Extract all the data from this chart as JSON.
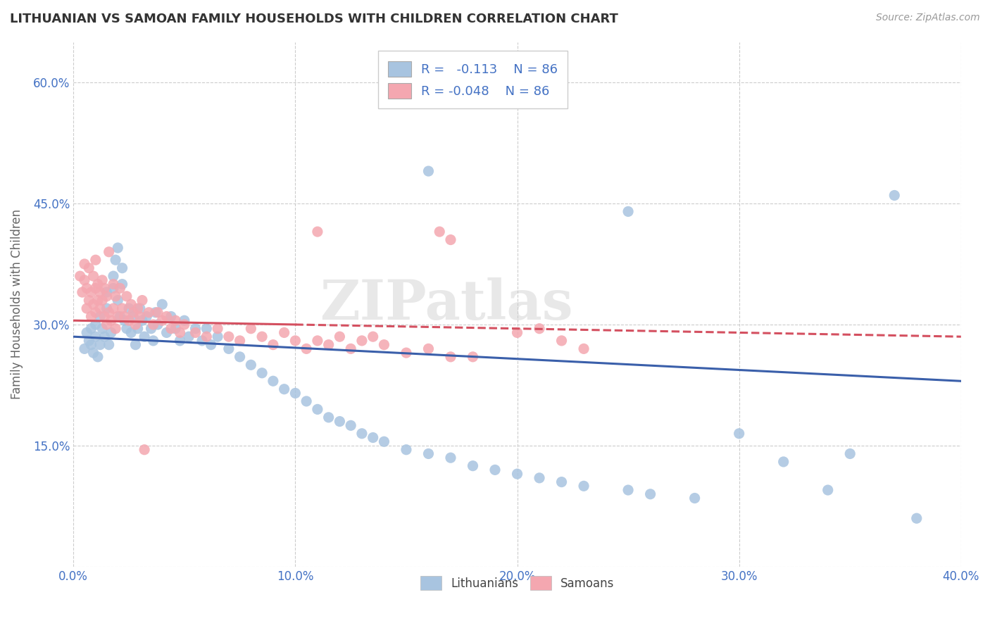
{
  "title": "LITHUANIAN VS SAMOAN FAMILY HOUSEHOLDS WITH CHILDREN CORRELATION CHART",
  "source": "Source: ZipAtlas.com",
  "ylabel": "Family Households with Children",
  "xlim": [
    0.0,
    0.4
  ],
  "ylim": [
    0.0,
    0.65
  ],
  "xticks": [
    0.0,
    0.1,
    0.2,
    0.3,
    0.4
  ],
  "xtick_labels": [
    "0.0%",
    "10.0%",
    "20.0%",
    "30.0%",
    "40.0%"
  ],
  "yticks": [
    0.0,
    0.15,
    0.3,
    0.45,
    0.6
  ],
  "ytick_labels": [
    "",
    "15.0%",
    "30.0%",
    "45.0%",
    "60.0%"
  ],
  "grid_color": "#cccccc",
  "background_color": "#ffffff",
  "watermark": "ZIPatlas",
  "legend_label1": "Lithuanians",
  "legend_label2": "Samoans",
  "color_blue": "#a8c4e0",
  "color_pink": "#f4a7b0",
  "line_color_blue": "#3a5faa",
  "line_color_pink": "#d45060",
  "title_color": "#333333",
  "r_value_color": "#4472c4",
  "blue_trend": [
    0.285,
    0.23
  ],
  "pink_trend_solid": [
    0.305,
    0.285
  ],
  "pink_trend_dashed_start": 0.1,
  "blue_scatter": [
    [
      0.005,
      0.27
    ],
    [
      0.006,
      0.29
    ],
    [
      0.007,
      0.28
    ],
    [
      0.008,
      0.275
    ],
    [
      0.008,
      0.295
    ],
    [
      0.009,
      0.265
    ],
    [
      0.01,
      0.285
    ],
    [
      0.01,
      0.3
    ],
    [
      0.011,
      0.26
    ],
    [
      0.012,
      0.31
    ],
    [
      0.012,
      0.275
    ],
    [
      0.013,
      0.295
    ],
    [
      0.014,
      0.285
    ],
    [
      0.015,
      0.32
    ],
    [
      0.015,
      0.34
    ],
    [
      0.016,
      0.275
    ],
    [
      0.017,
      0.29
    ],
    [
      0.018,
      0.36
    ],
    [
      0.018,
      0.345
    ],
    [
      0.019,
      0.38
    ],
    [
      0.02,
      0.395
    ],
    [
      0.02,
      0.33
    ],
    [
      0.021,
      0.31
    ],
    [
      0.022,
      0.35
    ],
    [
      0.022,
      0.37
    ],
    [
      0.023,
      0.305
    ],
    [
      0.024,
      0.295
    ],
    [
      0.025,
      0.32
    ],
    [
      0.026,
      0.29
    ],
    [
      0.027,
      0.31
    ],
    [
      0.028,
      0.275
    ],
    [
      0.029,
      0.295
    ],
    [
      0.03,
      0.32
    ],
    [
      0.031,
      0.305
    ],
    [
      0.032,
      0.285
    ],
    [
      0.033,
      0.31
    ],
    [
      0.035,
      0.295
    ],
    [
      0.036,
      0.28
    ],
    [
      0.037,
      0.315
    ],
    [
      0.038,
      0.3
    ],
    [
      0.04,
      0.325
    ],
    [
      0.042,
      0.29
    ],
    [
      0.044,
      0.31
    ],
    [
      0.046,
      0.295
    ],
    [
      0.048,
      0.28
    ],
    [
      0.05,
      0.305
    ],
    [
      0.052,
      0.285
    ],
    [
      0.055,
      0.295
    ],
    [
      0.058,
      0.28
    ],
    [
      0.06,
      0.295
    ],
    [
      0.062,
      0.275
    ],
    [
      0.065,
      0.285
    ],
    [
      0.07,
      0.27
    ],
    [
      0.075,
      0.26
    ],
    [
      0.08,
      0.25
    ],
    [
      0.085,
      0.24
    ],
    [
      0.09,
      0.23
    ],
    [
      0.095,
      0.22
    ],
    [
      0.1,
      0.215
    ],
    [
      0.105,
      0.205
    ],
    [
      0.11,
      0.195
    ],
    [
      0.115,
      0.185
    ],
    [
      0.12,
      0.18
    ],
    [
      0.125,
      0.175
    ],
    [
      0.13,
      0.165
    ],
    [
      0.135,
      0.16
    ],
    [
      0.14,
      0.155
    ],
    [
      0.15,
      0.145
    ],
    [
      0.16,
      0.14
    ],
    [
      0.17,
      0.135
    ],
    [
      0.18,
      0.125
    ],
    [
      0.19,
      0.12
    ],
    [
      0.2,
      0.115
    ],
    [
      0.21,
      0.11
    ],
    [
      0.22,
      0.105
    ],
    [
      0.23,
      0.1
    ],
    [
      0.25,
      0.095
    ],
    [
      0.26,
      0.09
    ],
    [
      0.28,
      0.085
    ],
    [
      0.3,
      0.165
    ],
    [
      0.32,
      0.13
    ],
    [
      0.34,
      0.095
    ],
    [
      0.35,
      0.14
    ],
    [
      0.38,
      0.06
    ],
    [
      0.37,
      0.46
    ],
    [
      0.16,
      0.49
    ],
    [
      0.25,
      0.44
    ]
  ],
  "pink_scatter": [
    [
      0.003,
      0.36
    ],
    [
      0.004,
      0.34
    ],
    [
      0.005,
      0.355
    ],
    [
      0.005,
      0.375
    ],
    [
      0.006,
      0.32
    ],
    [
      0.006,
      0.345
    ],
    [
      0.007,
      0.33
    ],
    [
      0.007,
      0.37
    ],
    [
      0.008,
      0.31
    ],
    [
      0.008,
      0.34
    ],
    [
      0.009,
      0.325
    ],
    [
      0.009,
      0.36
    ],
    [
      0.01,
      0.315
    ],
    [
      0.01,
      0.345
    ],
    [
      0.01,
      0.38
    ],
    [
      0.011,
      0.33
    ],
    [
      0.011,
      0.35
    ],
    [
      0.012,
      0.32
    ],
    [
      0.012,
      0.34
    ],
    [
      0.013,
      0.33
    ],
    [
      0.013,
      0.355
    ],
    [
      0.014,
      0.31
    ],
    [
      0.014,
      0.345
    ],
    [
      0.015,
      0.3
    ],
    [
      0.015,
      0.335
    ],
    [
      0.016,
      0.315
    ],
    [
      0.016,
      0.39
    ],
    [
      0.017,
      0.305
    ],
    [
      0.018,
      0.32
    ],
    [
      0.018,
      0.35
    ],
    [
      0.019,
      0.295
    ],
    [
      0.019,
      0.335
    ],
    [
      0.02,
      0.31
    ],
    [
      0.021,
      0.345
    ],
    [
      0.022,
      0.32
    ],
    [
      0.023,
      0.31
    ],
    [
      0.024,
      0.335
    ],
    [
      0.025,
      0.305
    ],
    [
      0.026,
      0.325
    ],
    [
      0.027,
      0.315
    ],
    [
      0.028,
      0.3
    ],
    [
      0.029,
      0.32
    ],
    [
      0.03,
      0.31
    ],
    [
      0.031,
      0.33
    ],
    [
      0.032,
      0.145
    ],
    [
      0.034,
      0.315
    ],
    [
      0.036,
      0.3
    ],
    [
      0.038,
      0.315
    ],
    [
      0.04,
      0.305
    ],
    [
      0.042,
      0.31
    ],
    [
      0.044,
      0.295
    ],
    [
      0.046,
      0.305
    ],
    [
      0.048,
      0.29
    ],
    [
      0.05,
      0.3
    ],
    [
      0.055,
      0.29
    ],
    [
      0.06,
      0.285
    ],
    [
      0.065,
      0.295
    ],
    [
      0.07,
      0.285
    ],
    [
      0.075,
      0.28
    ],
    [
      0.08,
      0.295
    ],
    [
      0.085,
      0.285
    ],
    [
      0.09,
      0.275
    ],
    [
      0.095,
      0.29
    ],
    [
      0.1,
      0.28
    ],
    [
      0.105,
      0.27
    ],
    [
      0.11,
      0.28
    ],
    [
      0.115,
      0.275
    ],
    [
      0.12,
      0.285
    ],
    [
      0.125,
      0.27
    ],
    [
      0.13,
      0.28
    ],
    [
      0.135,
      0.285
    ],
    [
      0.14,
      0.275
    ],
    [
      0.15,
      0.265
    ],
    [
      0.16,
      0.27
    ],
    [
      0.17,
      0.26
    ],
    [
      0.18,
      0.26
    ],
    [
      0.2,
      0.29
    ],
    [
      0.21,
      0.295
    ],
    [
      0.22,
      0.28
    ],
    [
      0.23,
      0.27
    ],
    [
      0.11,
      0.415
    ],
    [
      0.165,
      0.415
    ],
    [
      0.17,
      0.405
    ]
  ]
}
